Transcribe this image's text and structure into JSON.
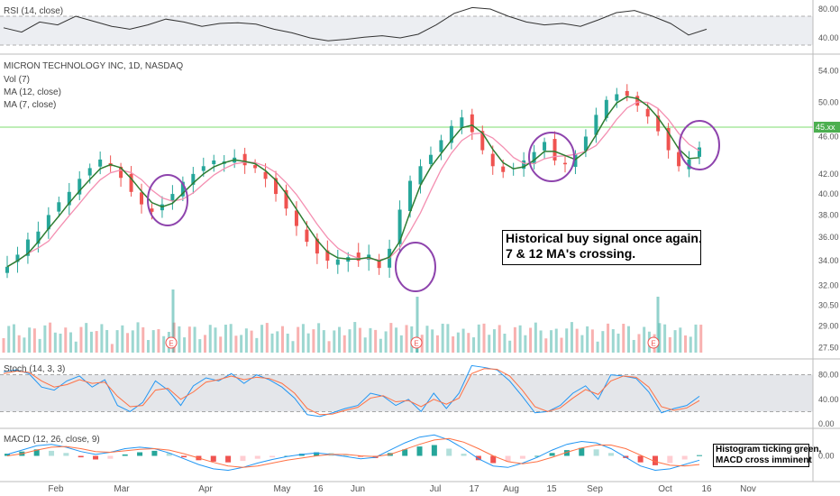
{
  "chart_data": [
    {
      "type": "line",
      "pane": "rsi",
      "label": "RSI (14, close)",
      "y_ticks": [
        "80.00",
        "40.00"
      ],
      "band": [
        30,
        70
      ],
      "x": [
        0,
        20,
        40,
        60,
        80,
        100,
        120,
        140,
        160,
        180,
        200,
        220,
        240,
        260,
        280,
        300,
        320,
        340,
        360,
        380,
        400,
        420,
        440,
        460,
        480,
        500,
        520,
        540,
        560,
        580,
        600,
        620,
        640,
        660,
        680,
        700,
        720,
        740,
        760,
        780
      ],
      "values": [
        54,
        48,
        62,
        58,
        70,
        63,
        56,
        52,
        58,
        66,
        62,
        56,
        60,
        61,
        59,
        52,
        47,
        40,
        36,
        38,
        41,
        43,
        40,
        45,
        58,
        74,
        82,
        80,
        70,
        62,
        58,
        60,
        56,
        65,
        75,
        78,
        70,
        60,
        44,
        52
      ]
    },
    {
      "type": "candlestick",
      "pane": "price",
      "symbol_label": "MICRON TECHNOLOGY INC, 1D, NASDAQ",
      "indicators": [
        "Vol (7)",
        "MA (12, close)",
        "MA (7, close)"
      ],
      "current_price_label": "45.xx",
      "y_ticks": [
        "54.00",
        "50.00",
        "46.00",
        "42.00",
        "40.00",
        "38.00",
        "36.00",
        "34.00",
        "32.00",
        "30.50",
        "29.00",
        "27.50"
      ],
      "x_ticks": [
        "Feb",
        "Mar",
        "Apr",
        "May",
        "16",
        "Jun",
        "Jul",
        "17",
        "Aug",
        "15",
        "Sep",
        "Oct",
        "16",
        "Nov"
      ],
      "candles_close": [
        33.5,
        34.5,
        35.8,
        36.5,
        38.0,
        39.2,
        40.2,
        41.5,
        42.6,
        43.5,
        42.8,
        41.6,
        40.2,
        39.0,
        38.3,
        39.0,
        40.0,
        41.2,
        42.0,
        42.8,
        43.4,
        43.3,
        43.7,
        42.9,
        42.6,
        41.5,
        40.0,
        38.6,
        37.0,
        35.6,
        34.6,
        34.0,
        34.1,
        34.3,
        34.0,
        34.5,
        33.4,
        35.0,
        38.5,
        41.3,
        42.8,
        44.0,
        45.6,
        47.2,
        48.2,
        46.5,
        44.5,
        42.8,
        42.2,
        42.6,
        43.4,
        44.3,
        45.4,
        43.4,
        43.0,
        44.1,
        46.0,
        48.5,
        50.3,
        51.0,
        50.8,
        49.6,
        48.3,
        46.6,
        44.5,
        42.8,
        43.5,
        44.8
      ],
      "ma7_color": "#2e7d32",
      "ma12_color": "#f48fb1",
      "up_color": "#26a69a",
      "down_color": "#ef5350",
      "annotation_main": [
        "Historical buy signal once again.",
        "7 & 12 MA's crossing."
      ],
      "earnings_marker": "E"
    },
    {
      "type": "line",
      "pane": "stoch",
      "label": "Stoch (14, 3, 3)",
      "y_ticks": [
        "80.00",
        "40.00",
        "0.00"
      ],
      "band": [
        20,
        80
      ],
      "k_values": [
        85,
        88,
        82,
        60,
        55,
        70,
        78,
        60,
        72,
        30,
        20,
        35,
        70,
        55,
        30,
        62,
        75,
        70,
        82,
        66,
        80,
        72,
        60,
        42,
        15,
        12,
        18,
        25,
        30,
        50,
        45,
        30,
        40,
        20,
        50,
        25,
        50,
        95,
        92,
        88,
        70,
        45,
        18,
        20,
        30,
        50,
        62,
        40,
        80,
        78,
        74,
        52,
        18,
        25,
        30,
        45
      ],
      "d_values": [
        82,
        86,
        84,
        70,
        60,
        64,
        72,
        66,
        68,
        45,
        28,
        30,
        55,
        58,
        40,
        52,
        68,
        72,
        78,
        72,
        76,
        74,
        66,
        50,
        25,
        15,
        16,
        22,
        27,
        42,
        46,
        36,
        38,
        28,
        40,
        32,
        42,
        82,
        90,
        89,
        78,
        55,
        28,
        20,
        26,
        42,
        56,
        48,
        70,
        78,
        76,
        60,
        28,
        22,
        26,
        38
      ]
    },
    {
      "type": "bar",
      "pane": "macd",
      "label": "MACD (12, 26, close, 9)",
      "y_ticks": [
        "0.00"
      ],
      "histogram": [
        0.3,
        0.6,
        0.9,
        0.7,
        0.4,
        -0.2,
        -0.5,
        -0.4,
        0.2,
        0.5,
        0.7,
        0.4,
        -0.2,
        -0.6,
        -0.8,
        -0.9,
        -0.7,
        -0.4,
        -0.2,
        0.0,
        0.3,
        0.5,
        0.4,
        0.2,
        -0.1,
        -0.3,
        0.4,
        0.9,
        1.3,
        1.5,
        1.0,
        0.3,
        -0.6,
        -1.0,
        -0.8,
        -0.4,
        0.0,
        0.4,
        0.8,
        1.1,
        0.9,
        0.4,
        -0.3,
        -0.9,
        -1.3,
        -1.0,
        -0.5,
        0.1
      ],
      "macd_line": [
        0.2,
        0.8,
        1.4,
        1.6,
        1.2,
        0.6,
        0.2,
        0.5,
        1.0,
        1.2,
        1.0,
        0.4,
        -0.4,
        -1.2,
        -1.8,
        -2.0,
        -1.6,
        -1.0,
        -0.5,
        -0.1,
        0.2,
        0.4,
        0.2,
        -0.1,
        -0.4,
        -0.2,
        0.8,
        1.8,
        2.6,
        2.9,
        2.2,
        1.0,
        -0.4,
        -1.4,
        -1.6,
        -1.0,
        -0.2,
        0.8,
        1.6,
        2.0,
        1.8,
        1.0,
        -0.2,
        -1.4,
        -2.0,
        -1.8,
        -1.2,
        -0.6
      ],
      "signal_line": [
        0.0,
        0.3,
        0.8,
        1.2,
        1.3,
        1.0,
        0.6,
        0.5,
        0.7,
        0.9,
        1.0,
        0.8,
        0.3,
        -0.3,
        -0.9,
        -1.4,
        -1.6,
        -1.4,
        -1.0,
        -0.6,
        -0.3,
        0.0,
        0.2,
        0.2,
        0.0,
        -0.1,
        0.2,
        0.9,
        1.6,
        2.2,
        2.4,
        1.9,
        1.0,
        0.0,
        -0.8,
        -1.1,
        -0.8,
        -0.2,
        0.5,
        1.1,
        1.5,
        1.5,
        1.0,
        0.1,
        -0.8,
        -1.3,
        -1.4,
        -1.2
      ],
      "annotation_macd": [
        "Histogram ticking green,",
        "MACD cross imminent"
      ]
    }
  ]
}
